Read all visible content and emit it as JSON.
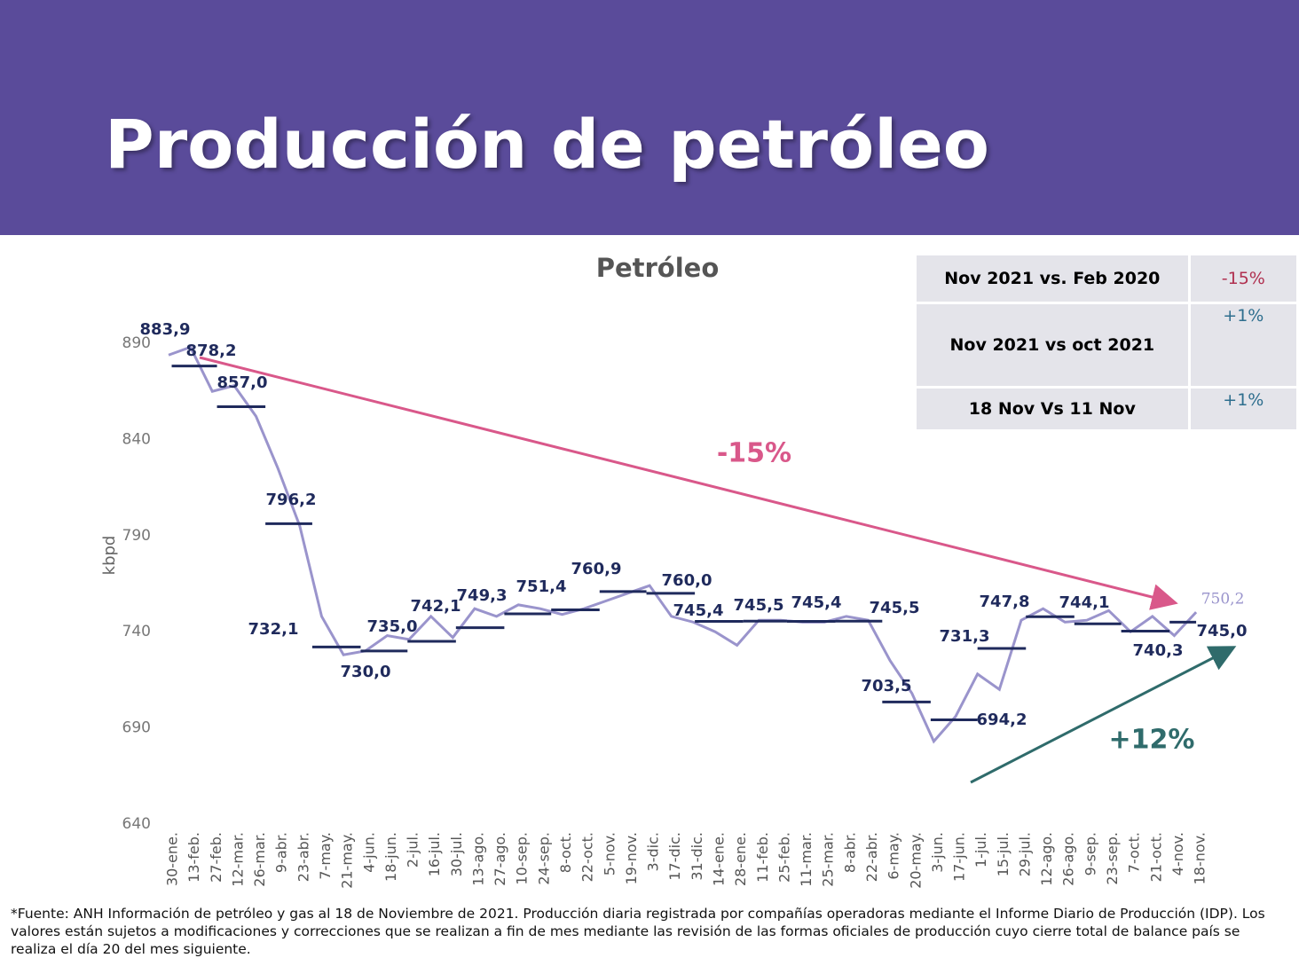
{
  "header": {
    "title": "Producción de petróleo"
  },
  "chart_data": {
    "type": "line",
    "title": "Petróleo",
    "y_label": "kbpd",
    "categories": [
      "30-ene.",
      "13-feb.",
      "27-feb.",
      "12-mar.",
      "26-mar.",
      "9-abr.",
      "23-abr.",
      "7-may.",
      "21-may.",
      "4-jun.",
      "18-jun.",
      "2-jul.",
      "16-jul.",
      "30-jul.",
      "13-ago.",
      "27-ago.",
      "10-sep.",
      "24-sep.",
      "8-oct.",
      "22-oct.",
      "5-nov.",
      "19-nov.",
      "3-dic.",
      "17-dic.",
      "31-dic.",
      "14-ene.",
      "28-ene.",
      "11-feb.",
      "25-feb.",
      "11-mar.",
      "25-mar.",
      "8-abr.",
      "22-abr.",
      "6-may.",
      "20-may.",
      "3-jun.",
      "17-jun.",
      "1-jul.",
      "15-jul.",
      "29-jul.",
      "12-ago.",
      "26-ago.",
      "9-sep.",
      "23-sep.",
      "7-oct.",
      "21-oct.",
      "4-nov.",
      "18-nov."
    ],
    "series": [
      {
        "color": "#9a94cc",
        "values": [
          883.9,
          888,
          865,
          868,
          852,
          825,
          795,
          748,
          728,
          730,
          738,
          736,
          748,
          737,
          752,
          748,
          754,
          752,
          749,
          752,
          756,
          760,
          764,
          748,
          745,
          740,
          733,
          746,
          746,
          745,
          745,
          748,
          746,
          725,
          708,
          683,
          696,
          718,
          710,
          746,
          752,
          745,
          746,
          751,
          740,
          748,
          738,
          750.2
        ],
        "value_labels": [
          "883,9",
          null,
          null,
          null,
          null,
          null,
          null,
          null,
          null,
          null,
          null,
          null,
          null,
          null,
          null,
          null,
          null,
          null,
          null,
          null,
          null,
          null,
          null,
          null,
          null,
          null,
          null,
          null,
          null,
          null,
          null,
          null,
          null,
          null,
          null,
          null,
          null,
          null,
          null,
          null,
          null,
          null,
          null,
          null,
          null,
          null,
          null,
          "750,2"
        ]
      }
    ],
    "monthly_averages": {
      "color": "#1f2a5c",
      "values": [
        878.2,
        857.0,
        796.2,
        732.1,
        730.0,
        735.0,
        742.1,
        749.3,
        751.4,
        760.9,
        760.0,
        745.4,
        745.5,
        745.4,
        745.5,
        703.5,
        694.2,
        731.3,
        747.8,
        744.1,
        740.3,
        745.0
      ],
      "value_labels": [
        "878,2",
        "857,0",
        "796,2",
        "732,1",
        "730,0",
        "735,0",
        "742,1",
        "749,3",
        "751,4",
        "760,9",
        "760,0",
        "745,4",
        "745,5",
        "745,4",
        "745,5",
        "703,5",
        "694,2",
        "731,3",
        "747,8",
        "744,1",
        "740,3",
        "745,0"
      ]
    },
    "ylim": [
      640,
      890
    ],
    "yticks": [
      640,
      690,
      740,
      790,
      840,
      890
    ],
    "annotations": [
      {
        "text": "-15%",
        "color": "#d9588a"
      },
      {
        "text": "+12%",
        "color": "#2f6b6b"
      }
    ]
  },
  "table": {
    "rows": [
      [
        "Nov 2021 vs. Feb 2020",
        "-15%"
      ],
      [
        "Nov 2021 vs oct 2021",
        "+1%"
      ],
      [
        "18 Nov Vs 11 Nov",
        "+1%"
      ]
    ]
  },
  "footnote": "*Fuente: ANH Información de petróleo y gas al 18 de Noviembre de 2021. Producción diaria registrada por compañías operadoras mediante el Informe Diario de Producción (IDP). Los valores están sujetos a modificaciones  y correcciones que se realizan a fin de mes mediante las revisión de las formas oficiales de producción cuyo cierre total de balance país  se realiza el día 20 del mes siguiente."
}
